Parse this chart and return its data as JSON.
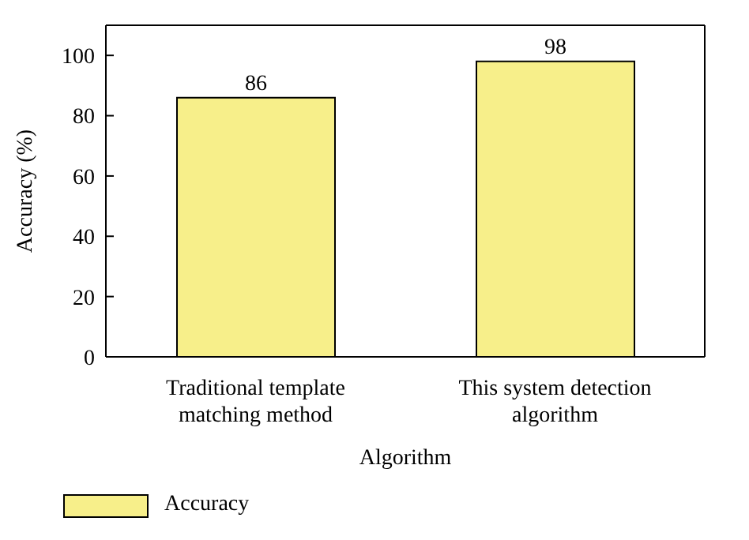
{
  "chart_data": {
    "type": "bar",
    "xlabel": "Algorithm",
    "ylabel": "Accuracy (%)",
    "categories": [
      "Traditional template matching method",
      "This system detection algorithm"
    ],
    "series": [
      {
        "name": "Accuracy",
        "color": "#f7ef8a",
        "values": [
          86,
          98
        ]
      }
    ],
    "ylim": [
      0,
      110
    ],
    "yticks": [
      0,
      20,
      40,
      60,
      80,
      100
    ],
    "data_labels": true,
    "legend": "bottom left"
  }
}
